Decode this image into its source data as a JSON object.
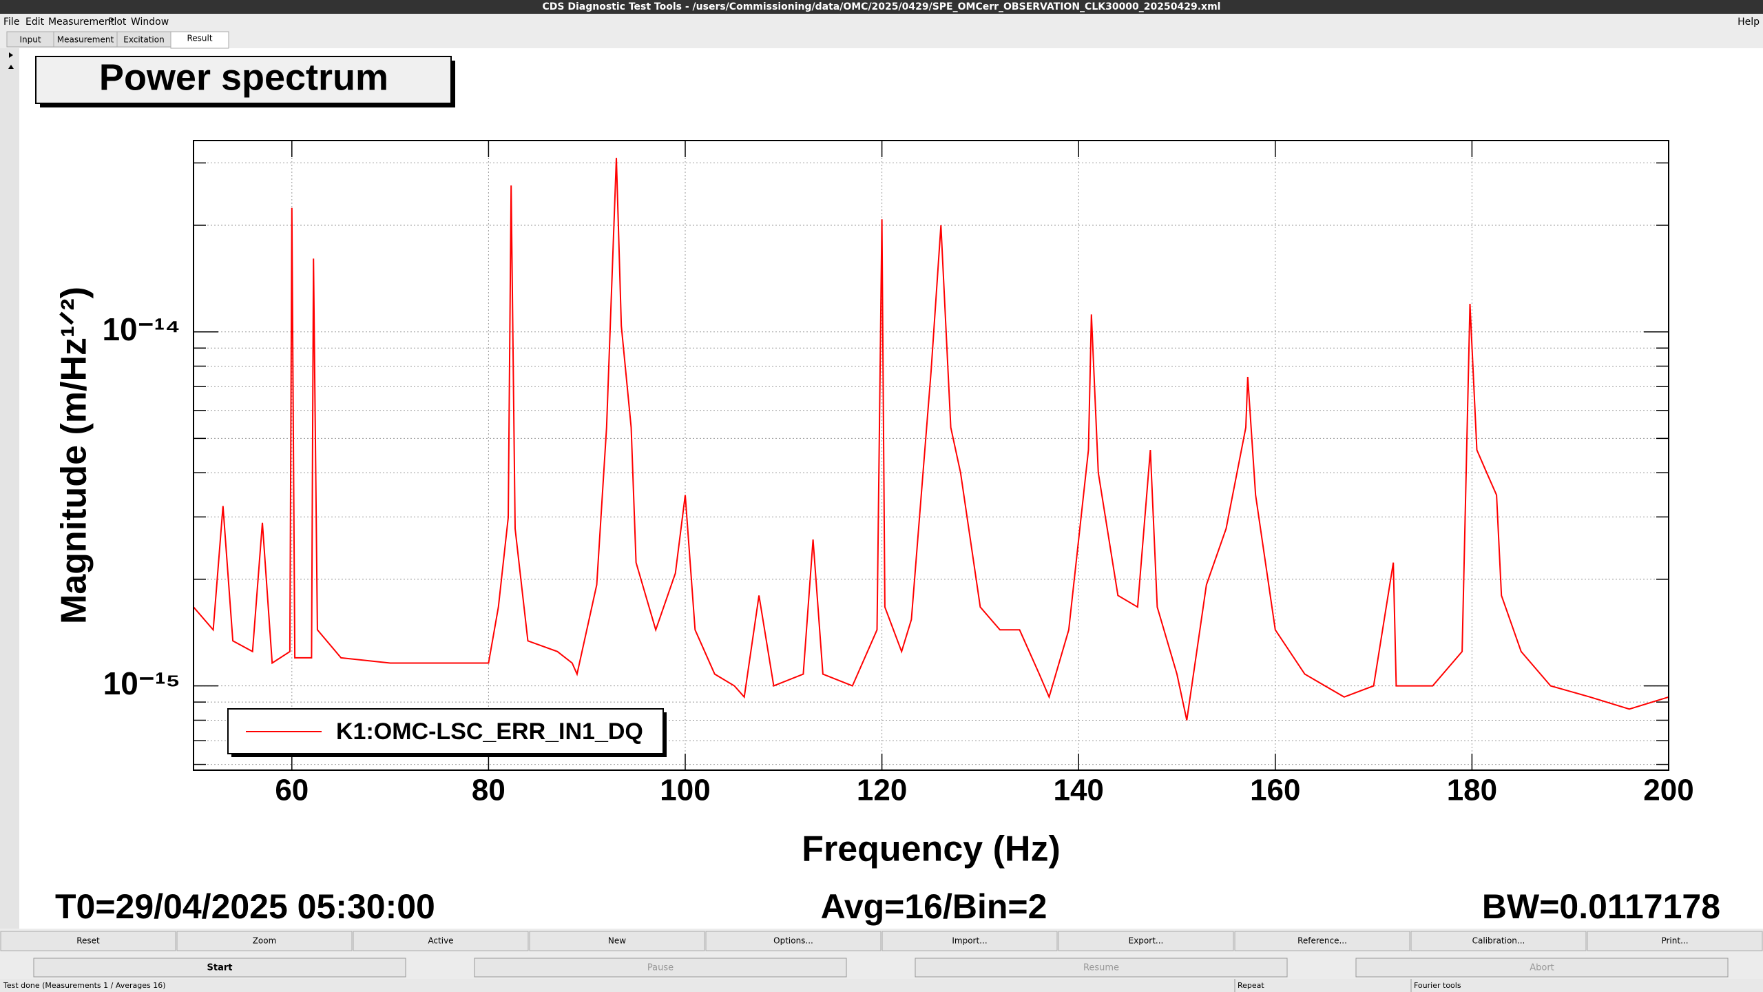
{
  "window": {
    "title": "CDS Diagnostic Test Tools - /users/Commissioning/data/OMC/2025/0429/SPE_OMCerr_OBSERVATION_CLK30000_20250429.xml"
  },
  "menu": {
    "items": [
      "File",
      "Edit",
      "Measurement",
      "Plot",
      "Window"
    ],
    "help": "Help"
  },
  "tabs": [
    "Input",
    "Measurement",
    "Excitation",
    "Result"
  ],
  "chart_data": {
    "type": "line",
    "title": "Power spectrum",
    "x_label": "Frequency (Hz)",
    "y_label": "Magnitude (m/Hz¹ᐟ²)",
    "x": [
      50,
      52,
      53,
      54,
      56,
      57,
      58,
      59.8,
      60,
      60.3,
      62,
      62.2,
      62.6,
      65,
      70,
      75,
      80,
      81,
      82,
      82.3,
      82.7,
      84,
      87,
      88.5,
      89,
      91,
      92,
      93,
      93.5,
      94.5,
      95,
      97,
      99,
      100,
      101,
      103,
      105,
      106,
      107.5,
      109,
      112,
      113,
      114,
      117,
      119.5,
      120,
      120.3,
      122,
      123,
      125,
      126,
      127,
      128,
      130,
      132,
      134,
      136,
      137,
      139,
      141,
      141.3,
      142,
      144,
      146,
      147.3,
      148,
      150,
      151,
      153,
      155,
      157,
      157.2,
      158,
      160,
      163,
      167,
      170,
      172,
      172.3,
      176,
      179,
      179.8,
      180.5,
      181.5,
      182.5,
      183,
      185,
      188,
      192,
      196,
      200
    ],
    "series": [
      {
        "name": "K1:OMC-LSC_ERR_IN1_DQ",
        "color": "#ff0000",
        "values": [
          1.67e-15,
          1.44e-15,
          3.22e-15,
          1.34e-15,
          1.25e-15,
          2.89e-15,
          1.16e-15,
          1.25e-15,
          2.24e-14,
          1.2e-15,
          1.2e-15,
          1.61e-14,
          1.44e-15,
          1.2e-15,
          1.16e-15,
          1.16e-15,
          1.16e-15,
          1.67e-15,
          2.99e-15,
          2.59e-14,
          2.78e-15,
          1.34e-15,
          1.25e-15,
          1.16e-15,
          1.08e-15,
          1.93e-15,
          5.37e-15,
          3.1e-14,
          1.04e-14,
          5.37e-15,
          2.23e-15,
          1.44e-15,
          2.08e-15,
          3.46e-15,
          1.44e-15,
          1.08e-15,
          1e-15,
          9.3e-16,
          1.8e-15,
          1e-15,
          1.08e-15,
          2.59e-15,
          1.08e-15,
          1e-15,
          1.44e-15,
          2.08e-14,
          1.67e-15,
          1.25e-15,
          1.54e-15,
          7.74e-15,
          2e-14,
          5.37e-15,
          4e-15,
          1.67e-15,
          1.44e-15,
          1.44e-15,
          1.08e-15,
          9.3e-16,
          1.44e-15,
          4.64e-15,
          1.12e-14,
          4e-15,
          1.8e-15,
          1.67e-15,
          4.64e-15,
          1.67e-15,
          1.08e-15,
          8e-16,
          1.93e-15,
          2.78e-15,
          5.37e-15,
          7.46e-15,
          3.46e-15,
          1.44e-15,
          1.08e-15,
          9.3e-16,
          1e-15,
          2.23e-15,
          1e-15,
          1e-15,
          1.25e-15,
          1.2e-14,
          4.64e-15,
          4e-15,
          3.46e-15,
          1.8e-15,
          1.25e-15,
          1e-15,
          9.3e-16,
          8.6e-16,
          9.3e-16
        ]
      }
    ],
    "xlim": [
      50,
      200
    ],
    "ylim": [
      5.78e-16,
      3.47e-14
    ],
    "xticks": [
      60,
      80,
      100,
      120,
      140,
      160,
      180,
      200
    ],
    "yticks": [
      {
        "value": 1e-15,
        "label": "10⁻¹⁵"
      },
      {
        "value": 1e-14,
        "label": "10⁻¹⁴"
      }
    ],
    "yminor": [
      6e-16,
      7e-16,
      8e-16,
      9e-16,
      2e-15,
      3e-15,
      4e-15,
      5e-15,
      6e-15,
      7e-15,
      8e-15,
      9e-15,
      2e-14,
      3e-14
    ],
    "log_y": true,
    "grid": true,
    "legend": "lower-left"
  },
  "footer": {
    "t0": "T0=29/04/2025 05:30:00",
    "avg": "Avg=16/Bin=2",
    "bw": "BW=0.0117178"
  },
  "buttons": {
    "row1": [
      "Reset",
      "Zoom",
      "Active",
      "New",
      "Options...",
      "Import...",
      "Export...",
      "Reference...",
      "Calibration...",
      "Print..."
    ],
    "row2": [
      "Start",
      "Pause",
      "Resume",
      "Abort"
    ]
  },
  "status": [
    "Test done (Measurements 1 / Averages 16)",
    "Repeat",
    "Fourier tools"
  ]
}
